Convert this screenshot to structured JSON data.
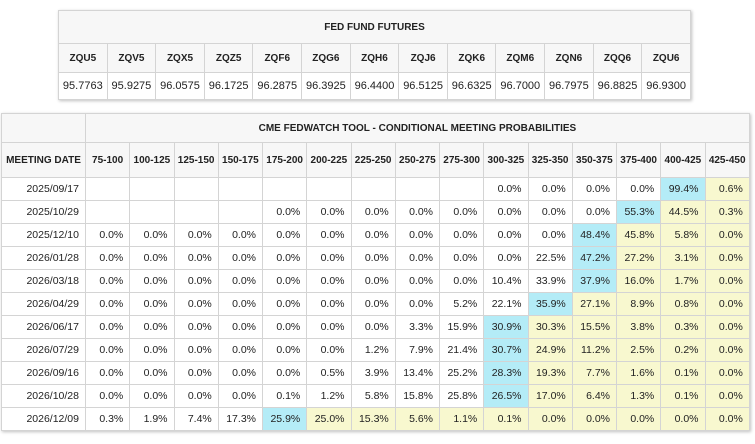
{
  "futures": {
    "title": "FED FUND FUTURES",
    "contracts": [
      {
        "code": "ZQU5",
        "price": "95.7763"
      },
      {
        "code": "ZQV5",
        "price": "95.9275"
      },
      {
        "code": "ZQX5",
        "price": "96.0575"
      },
      {
        "code": "ZQZ5",
        "price": "96.1725"
      },
      {
        "code": "ZQF6",
        "price": "96.2875"
      },
      {
        "code": "ZQG6",
        "price": "96.3925"
      },
      {
        "code": "ZQH6",
        "price": "96.4400"
      },
      {
        "code": "ZQJ6",
        "price": "96.5125"
      },
      {
        "code": "ZQK6",
        "price": "96.6325"
      },
      {
        "code": "ZQM6",
        "price": "96.7000"
      },
      {
        "code": "ZQN6",
        "price": "96.7975"
      },
      {
        "code": "ZQQ6",
        "price": "96.8825"
      },
      {
        "code": "ZQU6",
        "price": "96.9300"
      }
    ]
  },
  "fedwatch": {
    "title": "CME FEDWATCH TOOL - CONDITIONAL MEETING PROBABILITIES",
    "date_header": "MEETING DATE",
    "ranges": [
      "75-100",
      "100-125",
      "125-150",
      "150-175",
      "175-200",
      "200-225",
      "225-250",
      "250-275",
      "275-300",
      "300-325",
      "325-350",
      "350-375",
      "375-400",
      "400-425",
      "425-450"
    ],
    "colors": {
      "highlight": "#b4ecf7",
      "shaded": "#f8f8cf",
      "plain": "#ffffff"
    },
    "rows": [
      {
        "date": "2025/09/17",
        "values": [
          "",
          "",
          "",
          "",
          "",
          "",
          "",
          "",
          "",
          "0.0%",
          "0.0%",
          "0.0%",
          "0.0%",
          "99.4%",
          "0.6%"
        ],
        "styles": "nnnnnnnnnnnnnby"
      },
      {
        "date": "2025/10/29",
        "values": [
          "",
          "",
          "",
          "",
          "0.0%",
          "0.0%",
          "0.0%",
          "0.0%",
          "0.0%",
          "0.0%",
          "0.0%",
          "0.0%",
          "55.3%",
          "44.5%",
          "0.3%"
        ],
        "styles": "nnnnnnnnnnnnbyy"
      },
      {
        "date": "2025/12/10",
        "values": [
          "0.0%",
          "0.0%",
          "0.0%",
          "0.0%",
          "0.0%",
          "0.0%",
          "0.0%",
          "0.0%",
          "0.0%",
          "0.0%",
          "0.0%",
          "48.4%",
          "45.8%",
          "5.8%",
          "0.0%"
        ],
        "styles": "nnnnnnnnnnnbyyy"
      },
      {
        "date": "2026/01/28",
        "values": [
          "0.0%",
          "0.0%",
          "0.0%",
          "0.0%",
          "0.0%",
          "0.0%",
          "0.0%",
          "0.0%",
          "0.0%",
          "0.0%",
          "22.5%",
          "47.2%",
          "27.2%",
          "3.1%",
          "0.0%"
        ],
        "styles": "nnnnnnnnnnnbyyy"
      },
      {
        "date": "2026/03/18",
        "values": [
          "0.0%",
          "0.0%",
          "0.0%",
          "0.0%",
          "0.0%",
          "0.0%",
          "0.0%",
          "0.0%",
          "0.0%",
          "10.4%",
          "33.9%",
          "37.9%",
          "16.0%",
          "1.7%",
          "0.0%"
        ],
        "styles": "nnnnnnnnnnnbyyy"
      },
      {
        "date": "2026/04/29",
        "values": [
          "0.0%",
          "0.0%",
          "0.0%",
          "0.0%",
          "0.0%",
          "0.0%",
          "0.0%",
          "0.0%",
          "5.2%",
          "22.1%",
          "35.9%",
          "27.1%",
          "8.9%",
          "0.8%",
          "0.0%"
        ],
        "styles": "nnnnnnnnnnbyyyy"
      },
      {
        "date": "2026/06/17",
        "values": [
          "0.0%",
          "0.0%",
          "0.0%",
          "0.0%",
          "0.0%",
          "0.0%",
          "0.0%",
          "3.3%",
          "15.9%",
          "30.9%",
          "30.3%",
          "15.5%",
          "3.8%",
          "0.3%",
          "0.0%"
        ],
        "styles": "nnnnnnnnnbyyyyy"
      },
      {
        "date": "2026/07/29",
        "values": [
          "0.0%",
          "0.0%",
          "0.0%",
          "0.0%",
          "0.0%",
          "0.0%",
          "1.2%",
          "7.9%",
          "21.4%",
          "30.7%",
          "24.9%",
          "11.2%",
          "2.5%",
          "0.2%",
          "0.0%"
        ],
        "styles": "nnnnnnnnnbyyyyy"
      },
      {
        "date": "2026/09/16",
        "values": [
          "0.0%",
          "0.0%",
          "0.0%",
          "0.0%",
          "0.0%",
          "0.5%",
          "3.9%",
          "13.4%",
          "25.2%",
          "28.3%",
          "19.3%",
          "7.7%",
          "1.6%",
          "0.1%",
          "0.0%"
        ],
        "styles": "nnnnnnnnnbyyyyy"
      },
      {
        "date": "2026/10/28",
        "values": [
          "0.0%",
          "0.0%",
          "0.0%",
          "0.0%",
          "0.1%",
          "1.2%",
          "5.8%",
          "15.8%",
          "25.8%",
          "26.5%",
          "17.0%",
          "6.4%",
          "1.3%",
          "0.1%",
          "0.0%"
        ],
        "styles": "nnnnnnnnnbyyyyy"
      },
      {
        "date": "2026/12/09",
        "values": [
          "0.3%",
          "1.9%",
          "7.4%",
          "17.3%",
          "25.9%",
          "25.0%",
          "15.3%",
          "5.6%",
          "1.1%",
          "0.1%",
          "0.0%",
          "0.0%",
          "0.0%",
          "0.0%",
          "0.0%"
        ],
        "styles": "nnnnbyyyyyyyyyy"
      }
    ]
  }
}
